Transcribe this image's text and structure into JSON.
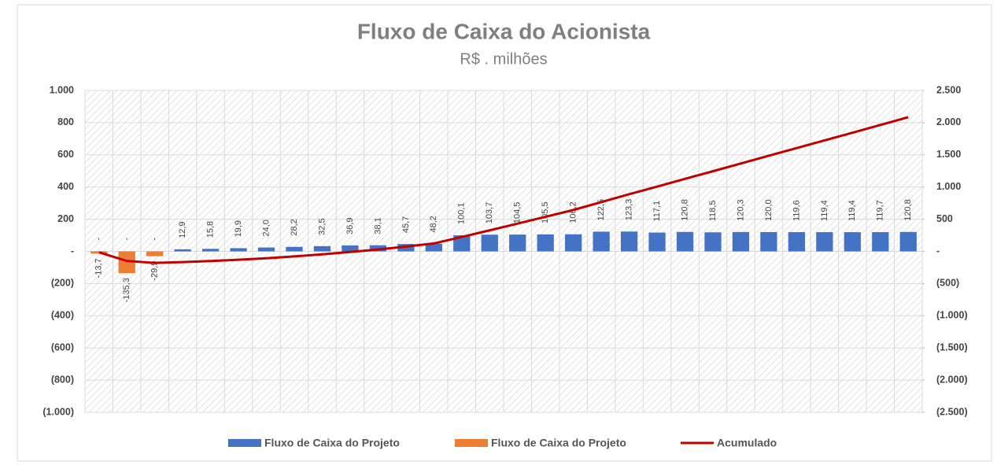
{
  "chart_data": {
    "type": "bar_line",
    "title": "Fluxo de Caixa do Acionista",
    "subtitle": "R$ . milhões",
    "categories": [
      null,
      null,
      null,
      null,
      null,
      null,
      null,
      null,
      null,
      null,
      null,
      null,
      null,
      null,
      null,
      null,
      null,
      null,
      null,
      null,
      null,
      null,
      null,
      null,
      null,
      null,
      null,
      null,
      null,
      null
    ],
    "series": [
      {
        "name": "Fluxo de Caixa do Projeto",
        "color": "#4472c4",
        "kind": "bar",
        "values": [
          0,
          0,
          0,
          12.9,
          15.8,
          19.9,
          24.0,
          28.2,
          32.5,
          36.9,
          38.1,
          45.7,
          48.2,
          100.1,
          103.7,
          104.5,
          105.5,
          106.2,
          122.5,
          123.3,
          117.1,
          120.8,
          118.5,
          120.3,
          120.0,
          119.6,
          119.4,
          119.4,
          119.7,
          120.8
        ],
        "value_labels": [
          "-",
          "-",
          "-",
          "12,9",
          "15,8",
          "19,9",
          "24,0",
          "28,2",
          "32,5",
          "36,9",
          "38,1",
          "45,7",
          "48,2",
          "100,1",
          "103,7",
          "104,5",
          "105,5",
          "106,2",
          "122,5",
          "123,3",
          "117,1",
          "120,8",
          "118,5",
          "120,3",
          "120,0",
          "119,6",
          "119,4",
          "119,4",
          "119,7",
          "120,8"
        ]
      },
      {
        "name": "Fluxo de Caixa do Projeto",
        "color": "#ed7d31",
        "kind": "bar",
        "values": [
          -13.7,
          -135.3,
          -29.9,
          null,
          null,
          null,
          null,
          null,
          null,
          null,
          null,
          null,
          null,
          null,
          null,
          null,
          null,
          null,
          null,
          null,
          null,
          null,
          null,
          null,
          null,
          null,
          null,
          null,
          null,
          null
        ],
        "value_labels": [
          "-13,7",
          "-135,3",
          "-29,9",
          null,
          null,
          null,
          null,
          null,
          null,
          null,
          null,
          null,
          null,
          null,
          null,
          null,
          null,
          null,
          null,
          null,
          null,
          null,
          null,
          null,
          null,
          null,
          null,
          null,
          null,
          null
        ]
      },
      {
        "name": "Acumulado",
        "color": "#c00000",
        "kind": "line",
        "axis": "y2",
        "values": [
          -13.7,
          -149.0,
          -178.9,
          -166.0,
          -150.2,
          -130.3,
          -106.3,
          -78.1,
          -45.6,
          -8.7,
          29.4,
          75.1,
          123.3,
          223.4,
          327.1,
          431.6,
          537.1,
          643.3,
          765.8,
          889.1,
          1006.2,
          1127.0,
          1245.5,
          1365.8,
          1485.8,
          1605.4,
          1724.8,
          1844.2,
          1963.9,
          2084.7
        ]
      }
    ],
    "ylim": [
      -1000,
      1000
    ],
    "yticks": [
      {
        "value": 1000,
        "label": "1.000"
      },
      800,
      600,
      400,
      200,
      {
        "value": 0,
        "label": "-"
      },
      {
        "value": -200,
        "label": "(200)"
      },
      {
        "value": -400,
        "label": "(400)"
      },
      {
        "value": -600,
        "label": "(600)"
      },
      {
        "value": -800,
        "label": "(800)"
      },
      {
        "value": -1000,
        "label": "(1.000)"
      }
    ],
    "y2lim": [
      -2500,
      2500
    ],
    "y2ticks": [
      {
        "value": 2500,
        "label": "2.500"
      },
      {
        "value": 2000,
        "label": "2.000"
      },
      {
        "value": 1500,
        "label": "1.500"
      },
      {
        "value": 1000,
        "label": "1.000"
      },
      500,
      {
        "value": 0,
        "label": "-"
      },
      {
        "value": -500,
        "label": "(500)"
      },
      {
        "value": -1000,
        "label": "(1.000)"
      },
      {
        "value": -1500,
        "label": "(1.500)"
      },
      {
        "value": -2000,
        "label": "(2.000)"
      },
      {
        "value": -2500,
        "label": "(2.500)"
      }
    ],
    "grid": true,
    "legend": "bottom"
  }
}
